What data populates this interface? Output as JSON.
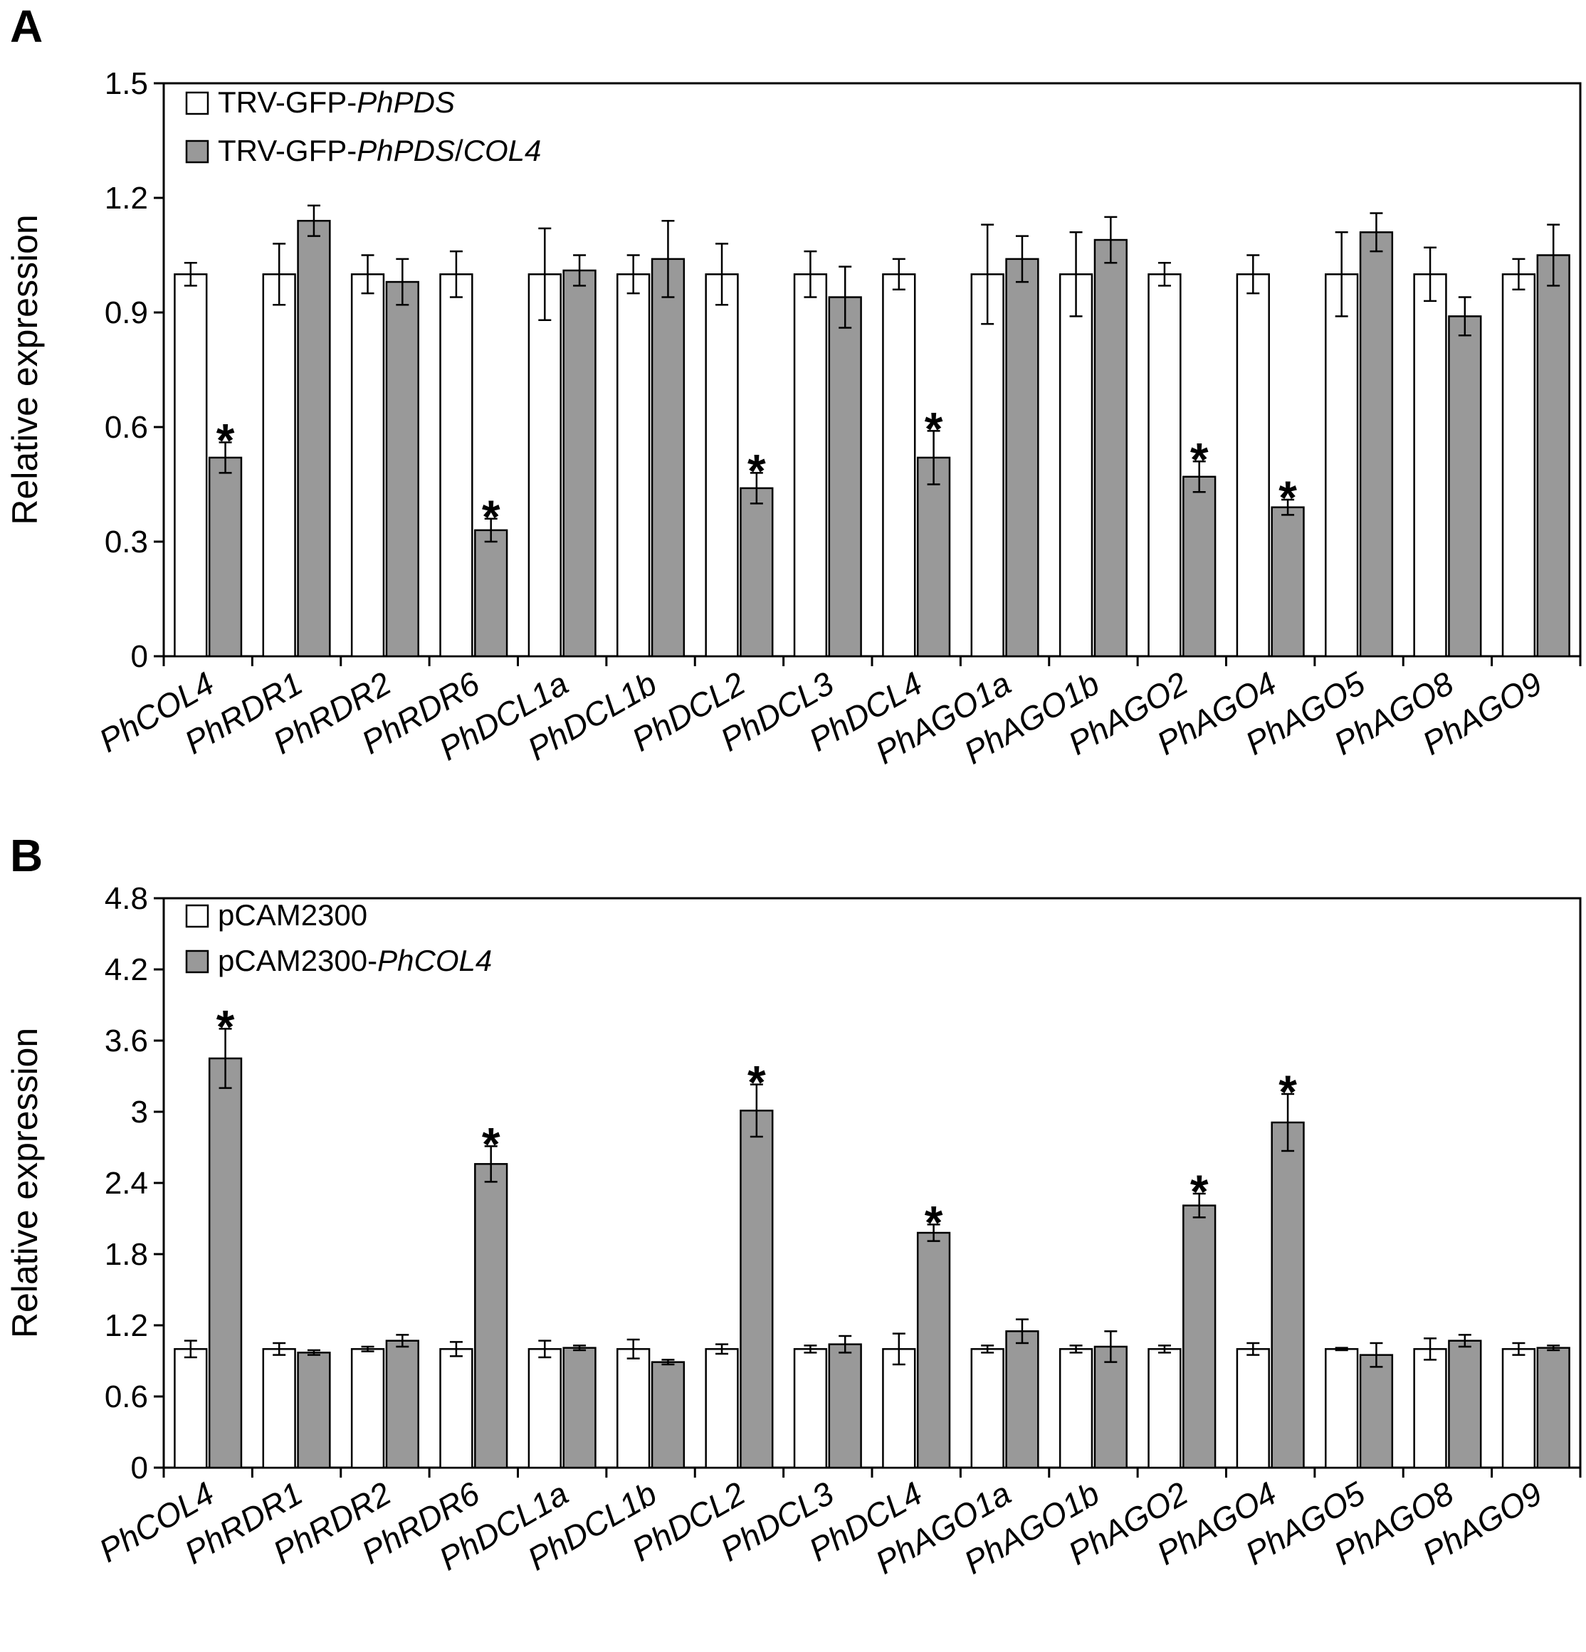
{
  "panels": [
    {
      "letter": "A"
    },
    {
      "letter": "B"
    }
  ],
  "colors": {
    "control": "#ffffff",
    "treatment": "#999999",
    "stroke": "#000000"
  },
  "chart_data": [
    {
      "type": "bar",
      "panel": "A",
      "ylabel": "Relative expression",
      "xlabel": "",
      "ylim": [
        0,
        1.5
      ],
      "yticks": [
        "0",
        "0.3",
        "0.6",
        "0.9",
        "1.2",
        "1.5"
      ],
      "ytick_values": [
        0,
        0.3,
        0.6,
        0.9,
        1.2,
        1.5
      ],
      "legend_position": "top-left",
      "categories": [
        "PhCOL4",
        "PhRDR1",
        "PhRDR2",
        "PhRDR6",
        "PhDCL1a",
        "PhDCL1b",
        "PhDCL2",
        "PhDCL3",
        "PhDCL4",
        "PhAGO1a",
        "PhAGO1b",
        "PhAGO2",
        "PhAGO4",
        "PhAGO5",
        "PhAGO8",
        "PhAGO9"
      ],
      "series": [
        {
          "name": "TRV-GFP-PhPDS",
          "legend_parts": [
            {
              "text": "TRV-GFP-",
              "italic": false
            },
            {
              "text": "PhPDS",
              "italic": true
            }
          ],
          "values": [
            1.0,
            1.0,
            1.0,
            1.0,
            1.0,
            1.0,
            1.0,
            1.0,
            1.0,
            1.0,
            1.0,
            1.0,
            1.0,
            1.0,
            1.0,
            1.0
          ],
          "errors": [
            0.03,
            0.08,
            0.05,
            0.06,
            0.12,
            0.05,
            0.08,
            0.06,
            0.04,
            0.13,
            0.11,
            0.03,
            0.05,
            0.11,
            0.07,
            0.04
          ]
        },
        {
          "name": "TRV-GFP-PhPDS/COL4",
          "legend_parts": [
            {
              "text": "TRV-GFP-",
              "italic": false
            },
            {
              "text": "PhPDS",
              "italic": true
            },
            {
              "text": "/",
              "italic": false
            },
            {
              "text": "COL4",
              "italic": true
            }
          ],
          "values": [
            0.52,
            1.14,
            0.98,
            0.33,
            1.01,
            1.04,
            0.44,
            0.94,
            0.52,
            1.04,
            1.09,
            0.47,
            0.39,
            1.11,
            0.89,
            1.05
          ],
          "errors": [
            0.04,
            0.04,
            0.06,
            0.03,
            0.04,
            0.1,
            0.04,
            0.08,
            0.07,
            0.06,
            0.06,
            0.04,
            0.02,
            0.05,
            0.05,
            0.08
          ]
        }
      ],
      "significance": [
        {
          "category": "PhCOL4",
          "label": "*"
        },
        {
          "category": "PhRDR6",
          "label": "*"
        },
        {
          "category": "PhDCL2",
          "label": "*"
        },
        {
          "category": "PhDCL4",
          "label": "*"
        },
        {
          "category": "PhAGO2",
          "label": "*"
        },
        {
          "category": "PhAGO4",
          "label": "*"
        }
      ]
    },
    {
      "type": "bar",
      "panel": "B",
      "ylabel": "Relative expression",
      "xlabel": "",
      "ylim": [
        0,
        4.8
      ],
      "yticks": [
        "0",
        "0.6",
        "1.2",
        "1.8",
        "2.4",
        "3",
        "3.6",
        "4.2",
        "4.8"
      ],
      "ytick_values": [
        0,
        0.6,
        1.2,
        1.8,
        2.4,
        3,
        3.6,
        4.2,
        4.8
      ],
      "legend_position": "top-left",
      "categories": [
        "PhCOL4",
        "PhRDR1",
        "PhRDR2",
        "PhRDR6",
        "PhDCL1a",
        "PhDCL1b",
        "PhDCL2",
        "PhDCL3",
        "PhDCL4",
        "PhAGO1a",
        "PhAGO1b",
        "PhAGO2",
        "PhAGO4",
        "PhAGO5",
        "PhAGO8",
        "PhAGO9"
      ],
      "series": [
        {
          "name": "pCAM2300",
          "legend_parts": [
            {
              "text": "pCAM2300",
              "italic": false
            }
          ],
          "values": [
            1.0,
            1.0,
            1.0,
            1.0,
            1.0,
            1.0,
            1.0,
            1.0,
            1.0,
            1.0,
            1.0,
            1.0,
            1.0,
            1.0,
            1.0,
            1.0
          ],
          "errors": [
            0.07,
            0.05,
            0.02,
            0.06,
            0.07,
            0.08,
            0.04,
            0.03,
            0.13,
            0.03,
            0.03,
            0.03,
            0.05,
            0.01,
            0.09,
            0.05
          ]
        },
        {
          "name": "pCAM2300-PhCOL4",
          "legend_parts": [
            {
              "text": "pCAM2300-",
              "italic": false
            },
            {
              "text": "PhCOL4",
              "italic": true
            }
          ],
          "values": [
            3.45,
            0.97,
            1.07,
            2.56,
            1.01,
            0.89,
            3.01,
            1.04,
            1.98,
            1.15,
            1.02,
            2.21,
            2.91,
            0.95,
            1.07,
            1.01
          ],
          "errors": [
            0.25,
            0.02,
            0.05,
            0.15,
            0.02,
            0.02,
            0.22,
            0.07,
            0.07,
            0.1,
            0.13,
            0.1,
            0.24,
            0.1,
            0.05,
            0.02
          ]
        }
      ],
      "significance": [
        {
          "category": "PhCOL4",
          "label": "*"
        },
        {
          "category": "PhRDR6",
          "label": "*"
        },
        {
          "category": "PhDCL2",
          "label": "*"
        },
        {
          "category": "PhDCL4",
          "label": "*"
        },
        {
          "category": "PhAGO2",
          "label": "*"
        },
        {
          "category": "PhAGO4",
          "label": "*"
        }
      ]
    }
  ]
}
